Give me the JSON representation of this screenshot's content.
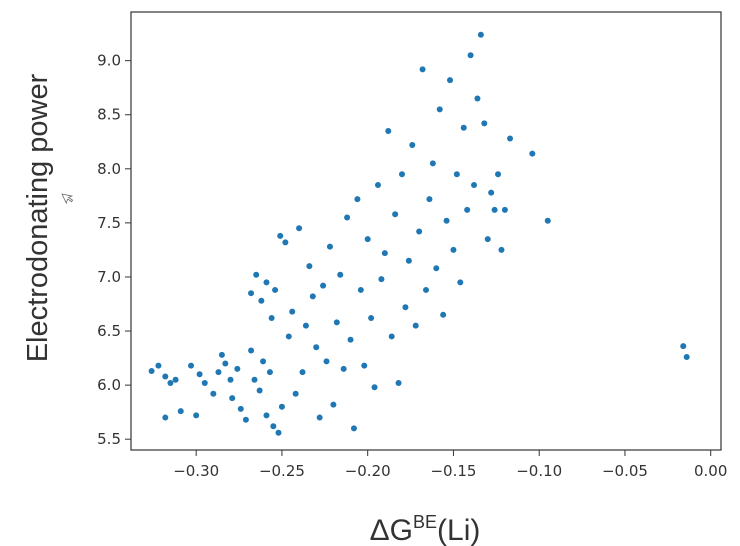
{
  "chart_data": {
    "type": "scatter",
    "title": "",
    "xlabel_main": "ΔG",
    "xlabel_sup": "BE",
    "xlabel_tail": "(Li)",
    "ylabel": "Electrodonating power",
    "xlim": [
      -0.338,
      0.006
    ],
    "ylim": [
      5.4,
      9.45
    ],
    "x_ticks": [
      -0.3,
      -0.25,
      -0.2,
      -0.15,
      -0.1,
      -0.05,
      0.0
    ],
    "x_tick_labels": [
      "−0.30",
      "−0.25",
      "−0.20",
      "−0.15",
      "−0.10",
      "−0.05",
      "0.00"
    ],
    "y_ticks": [
      5.5,
      6.0,
      6.5,
      7.0,
      7.5,
      8.0,
      8.5,
      9.0
    ],
    "y_tick_labels": [
      "5.5",
      "6.0",
      "6.5",
      "7.0",
      "7.5",
      "8.0",
      "8.5",
      "9.0"
    ],
    "grid": false,
    "marker_color": "#1f77b4",
    "points": [
      [
        -0.326,
        6.13
      ],
      [
        -0.322,
        6.18
      ],
      [
        -0.318,
        6.08
      ],
      [
        -0.315,
        6.02
      ],
      [
        -0.312,
        6.05
      ],
      [
        -0.318,
        5.7
      ],
      [
        -0.309,
        5.76
      ],
      [
        -0.3,
        5.72
      ],
      [
        -0.303,
        6.18
      ],
      [
        -0.298,
        6.1
      ],
      [
        -0.295,
        6.02
      ],
      [
        -0.29,
        5.92
      ],
      [
        -0.287,
        6.12
      ],
      [
        -0.285,
        6.28
      ],
      [
        -0.283,
        6.2
      ],
      [
        -0.28,
        6.05
      ],
      [
        -0.279,
        5.88
      ],
      [
        -0.276,
        6.15
      ],
      [
        -0.274,
        5.78
      ],
      [
        -0.271,
        5.68
      ],
      [
        -0.268,
        6.32
      ],
      [
        -0.266,
        6.05
      ],
      [
        -0.263,
        5.95
      ],
      [
        -0.261,
        6.22
      ],
      [
        -0.259,
        5.72
      ],
      [
        -0.257,
        6.12
      ],
      [
        -0.255,
        5.62
      ],
      [
        -0.252,
        5.56
      ],
      [
        -0.25,
        5.8
      ],
      [
        -0.268,
        6.85
      ],
      [
        -0.265,
        7.02
      ],
      [
        -0.262,
        6.78
      ],
      [
        -0.259,
        6.95
      ],
      [
        -0.256,
        6.62
      ],
      [
        -0.254,
        6.88
      ],
      [
        -0.251,
        7.38
      ],
      [
        -0.248,
        7.32
      ],
      [
        -0.246,
        6.45
      ],
      [
        -0.244,
        6.68
      ],
      [
        -0.242,
        5.92
      ],
      [
        -0.24,
        7.45
      ],
      [
        -0.238,
        6.12
      ],
      [
        -0.236,
        6.55
      ],
      [
        -0.234,
        7.1
      ],
      [
        -0.232,
        6.82
      ],
      [
        -0.23,
        6.35
      ],
      [
        -0.228,
        5.7
      ],
      [
        -0.226,
        6.92
      ],
      [
        -0.224,
        6.22
      ],
      [
        -0.222,
        7.28
      ],
      [
        -0.22,
        5.82
      ],
      [
        -0.218,
        6.58
      ],
      [
        -0.216,
        7.02
      ],
      [
        -0.214,
        6.15
      ],
      [
        -0.212,
        7.55
      ],
      [
        -0.21,
        6.42
      ],
      [
        -0.208,
        5.6
      ],
      [
        -0.206,
        7.72
      ],
      [
        -0.204,
        6.88
      ],
      [
        -0.202,
        6.18
      ],
      [
        -0.2,
        7.35
      ],
      [
        -0.198,
        6.62
      ],
      [
        -0.196,
        5.98
      ],
      [
        -0.194,
        7.85
      ],
      [
        -0.192,
        6.98
      ],
      [
        -0.19,
        7.22
      ],
      [
        -0.188,
        8.35
      ],
      [
        -0.186,
        6.45
      ],
      [
        -0.184,
        7.58
      ],
      [
        -0.182,
        6.02
      ],
      [
        -0.18,
        7.95
      ],
      [
        -0.178,
        6.72
      ],
      [
        -0.176,
        7.15
      ],
      [
        -0.174,
        8.22
      ],
      [
        -0.172,
        6.55
      ],
      [
        -0.17,
        7.42
      ],
      [
        -0.168,
        8.92
      ],
      [
        -0.166,
        6.88
      ],
      [
        -0.164,
        7.72
      ],
      [
        -0.162,
        8.05
      ],
      [
        -0.16,
        7.08
      ],
      [
        -0.158,
        8.55
      ],
      [
        -0.156,
        6.65
      ],
      [
        -0.154,
        7.52
      ],
      [
        -0.152,
        8.82
      ],
      [
        -0.15,
        7.25
      ],
      [
        -0.148,
        7.95
      ],
      [
        -0.146,
        6.95
      ],
      [
        -0.144,
        8.38
      ],
      [
        -0.142,
        7.62
      ],
      [
        -0.14,
        9.05
      ],
      [
        -0.138,
        7.85
      ],
      [
        -0.136,
        8.65
      ],
      [
        -0.134,
        9.24
      ],
      [
        -0.132,
        8.42
      ],
      [
        -0.13,
        7.35
      ],
      [
        -0.128,
        7.78
      ],
      [
        -0.126,
        7.62
      ],
      [
        -0.124,
        7.95
      ],
      [
        -0.122,
        7.25
      ],
      [
        -0.12,
        7.62
      ],
      [
        -0.117,
        8.28
      ],
      [
        -0.104,
        8.14
      ],
      [
        -0.095,
        7.52
      ],
      [
        -0.016,
        6.36
      ],
      [
        -0.014,
        6.26
      ]
    ]
  }
}
